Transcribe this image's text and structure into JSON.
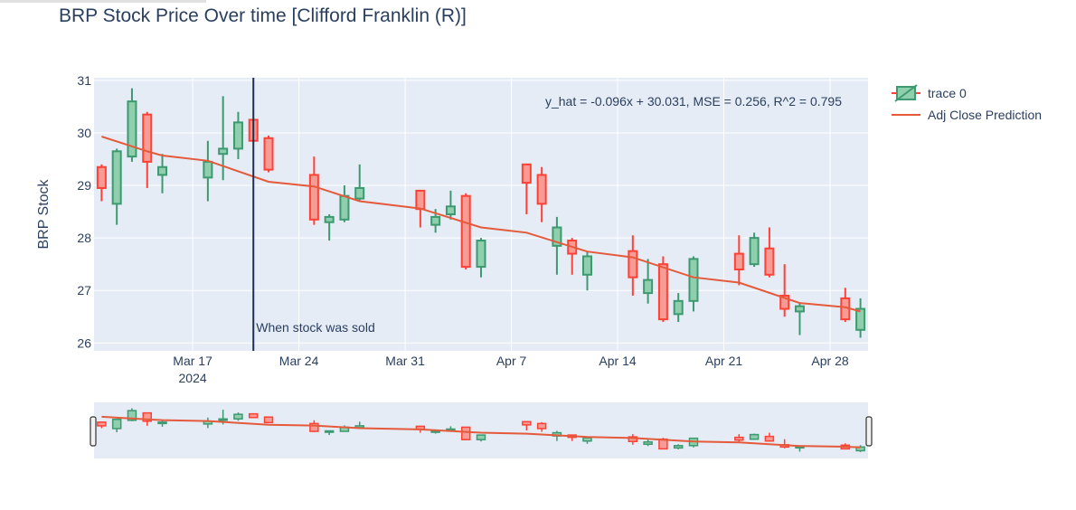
{
  "title": "BRP Stock Price Over time [Clifford Franklin (R)]",
  "chart_data": {
    "type": "candlestick",
    "ylabel": "BRP Stock",
    "xlabel": "",
    "ylim": [
      25.85,
      31.05
    ],
    "yticks": [
      26,
      27,
      28,
      29,
      30,
      31
    ],
    "x_ticks": [
      {
        "date": "2024-03-17",
        "label": "Mar 17",
        "sublabel": "2024"
      },
      {
        "date": "2024-03-24",
        "label": "Mar 24",
        "sublabel": ""
      },
      {
        "date": "2024-03-31",
        "label": "Mar 31",
        "sublabel": ""
      },
      {
        "date": "2024-04-07",
        "label": "Apr 7",
        "sublabel": ""
      },
      {
        "date": "2024-04-14",
        "label": "Apr 14",
        "sublabel": ""
      },
      {
        "date": "2024-04-21",
        "label": "Apr 21",
        "sublabel": ""
      },
      {
        "date": "2024-04-28",
        "label": "Apr 28",
        "sublabel": ""
      }
    ],
    "xrange": [
      "2024-03-11",
      "2024-04-30"
    ],
    "grid": true,
    "legend_position": "top-right",
    "increasing_color": "#3d9970",
    "decreasing_color": "#ff4136",
    "candles": [
      {
        "date": "2024-03-11",
        "open": 29.35,
        "high": 29.4,
        "low": 28.7,
        "close": 28.95
      },
      {
        "date": "2024-03-12",
        "open": 28.65,
        "high": 29.7,
        "low": 28.25,
        "close": 29.65
      },
      {
        "date": "2024-03-13",
        "open": 29.55,
        "high": 30.85,
        "low": 29.45,
        "close": 30.6
      },
      {
        "date": "2024-03-14",
        "open": 30.35,
        "high": 30.4,
        "low": 28.95,
        "close": 29.45
      },
      {
        "date": "2024-03-15",
        "open": 29.2,
        "high": 29.6,
        "low": 28.85,
        "close": 29.35
      },
      {
        "date": "2024-03-18",
        "open": 29.15,
        "high": 29.85,
        "low": 28.7,
        "close": 29.45
      },
      {
        "date": "2024-03-19",
        "open": 29.6,
        "high": 30.7,
        "low": 29.1,
        "close": 29.7
      },
      {
        "date": "2024-03-20",
        "open": 29.7,
        "high": 30.4,
        "low": 29.5,
        "close": 30.2
      },
      {
        "date": "2024-03-21",
        "open": 30.25,
        "high": 30.25,
        "low": 29.85,
        "close": 29.85
      },
      {
        "date": "2024-03-22",
        "open": 29.9,
        "high": 29.95,
        "low": 29.25,
        "close": 29.3
      },
      {
        "date": "2024-03-25",
        "open": 29.2,
        "high": 29.55,
        "low": 28.25,
        "close": 28.35
      },
      {
        "date": "2024-03-26",
        "open": 28.3,
        "high": 28.45,
        "low": 27.95,
        "close": 28.4
      },
      {
        "date": "2024-03-27",
        "open": 28.35,
        "high": 29.0,
        "low": 28.3,
        "close": 28.8
      },
      {
        "date": "2024-03-28",
        "open": 28.75,
        "high": 29.4,
        "low": 28.7,
        "close": 28.95
      },
      {
        "date": "2024-04-01",
        "open": 28.9,
        "high": 28.9,
        "low": 28.2,
        "close": 28.55
      },
      {
        "date": "2024-04-02",
        "open": 28.25,
        "high": 28.55,
        "low": 28.1,
        "close": 28.4
      },
      {
        "date": "2024-04-03",
        "open": 28.45,
        "high": 28.9,
        "low": 28.35,
        "close": 28.6
      },
      {
        "date": "2024-04-04",
        "open": 28.8,
        "high": 28.85,
        "low": 27.4,
        "close": 27.45
      },
      {
        "date": "2024-04-05",
        "open": 27.45,
        "high": 28.0,
        "low": 27.25,
        "close": 27.95
      },
      {
        "date": "2024-04-08",
        "open": 29.4,
        "high": 29.4,
        "low": 28.45,
        "close": 29.05
      },
      {
        "date": "2024-04-09",
        "open": 29.2,
        "high": 29.35,
        "low": 28.3,
        "close": 28.65
      },
      {
        "date": "2024-04-10",
        "open": 27.85,
        "high": 28.4,
        "low": 27.3,
        "close": 28.2
      },
      {
        "date": "2024-04-11",
        "open": 27.95,
        "high": 28.0,
        "low": 27.3,
        "close": 27.7
      },
      {
        "date": "2024-04-12",
        "open": 27.3,
        "high": 27.75,
        "low": 27.0,
        "close": 27.65
      },
      {
        "date": "2024-04-15",
        "open": 27.75,
        "high": 28.05,
        "low": 26.9,
        "close": 27.25
      },
      {
        "date": "2024-04-16",
        "open": 26.95,
        "high": 27.6,
        "low": 26.75,
        "close": 27.2
      },
      {
        "date": "2024-04-17",
        "open": 27.5,
        "high": 27.65,
        "low": 26.4,
        "close": 26.45
      },
      {
        "date": "2024-04-18",
        "open": 26.55,
        "high": 26.95,
        "low": 26.4,
        "close": 26.8
      },
      {
        "date": "2024-04-19",
        "open": 26.8,
        "high": 27.65,
        "low": 26.6,
        "close": 27.6
      },
      {
        "date": "2024-04-22",
        "open": 27.7,
        "high": 28.05,
        "low": 27.1,
        "close": 27.4
      },
      {
        "date": "2024-04-23",
        "open": 27.5,
        "high": 28.1,
        "low": 27.45,
        "close": 28.0
      },
      {
        "date": "2024-04-24",
        "open": 27.8,
        "high": 28.2,
        "low": 27.25,
        "close": 27.3
      },
      {
        "date": "2024-04-25",
        "open": 26.9,
        "high": 27.5,
        "low": 26.5,
        "close": 26.65
      },
      {
        "date": "2024-04-26",
        "open": 26.6,
        "high": 26.75,
        "low": 26.15,
        "close": 26.7
      },
      {
        "date": "2024-04-29",
        "open": 26.85,
        "high": 27.05,
        "low": 26.4,
        "close": 26.45
      },
      {
        "date": "2024-04-30",
        "open": 26.25,
        "high": 26.85,
        "low": 26.1,
        "close": 26.65
      }
    ],
    "prediction": {
      "name": "Adj Close Prediction",
      "color": "#e45a3b",
      "points": [
        {
          "date": "2024-03-11",
          "value": 29.93
        },
        {
          "date": "2024-03-14",
          "value": 29.65
        },
        {
          "date": "2024-03-15",
          "value": 29.57
        },
        {
          "date": "2024-03-18",
          "value": 29.47
        },
        {
          "date": "2024-03-22",
          "value": 29.07
        },
        {
          "date": "2024-03-25",
          "value": 28.98
        },
        {
          "date": "2024-03-28",
          "value": 28.7
        },
        {
          "date": "2024-04-01",
          "value": 28.56
        },
        {
          "date": "2024-04-05",
          "value": 28.2
        },
        {
          "date": "2024-04-08",
          "value": 28.1
        },
        {
          "date": "2024-04-12",
          "value": 27.74
        },
        {
          "date": "2024-04-15",
          "value": 27.63
        },
        {
          "date": "2024-04-19",
          "value": 27.25
        },
        {
          "date": "2024-04-22",
          "value": 27.15
        },
        {
          "date": "2024-04-26",
          "value": 26.76
        },
        {
          "date": "2024-04-29",
          "value": 26.68
        },
        {
          "date": "2024-04-30",
          "value": 26.6
        }
      ]
    },
    "vline": {
      "date": "2024-03-21",
      "label": "When stock was sold",
      "color": "#1f2f4f"
    },
    "annotation": "y_hat = -0.096x + 30.031, MSE = 0.256, R^2 = 0.795",
    "legend": [
      {
        "name": "trace 0"
      },
      {
        "name": "Adj Close Prediction"
      }
    ]
  }
}
